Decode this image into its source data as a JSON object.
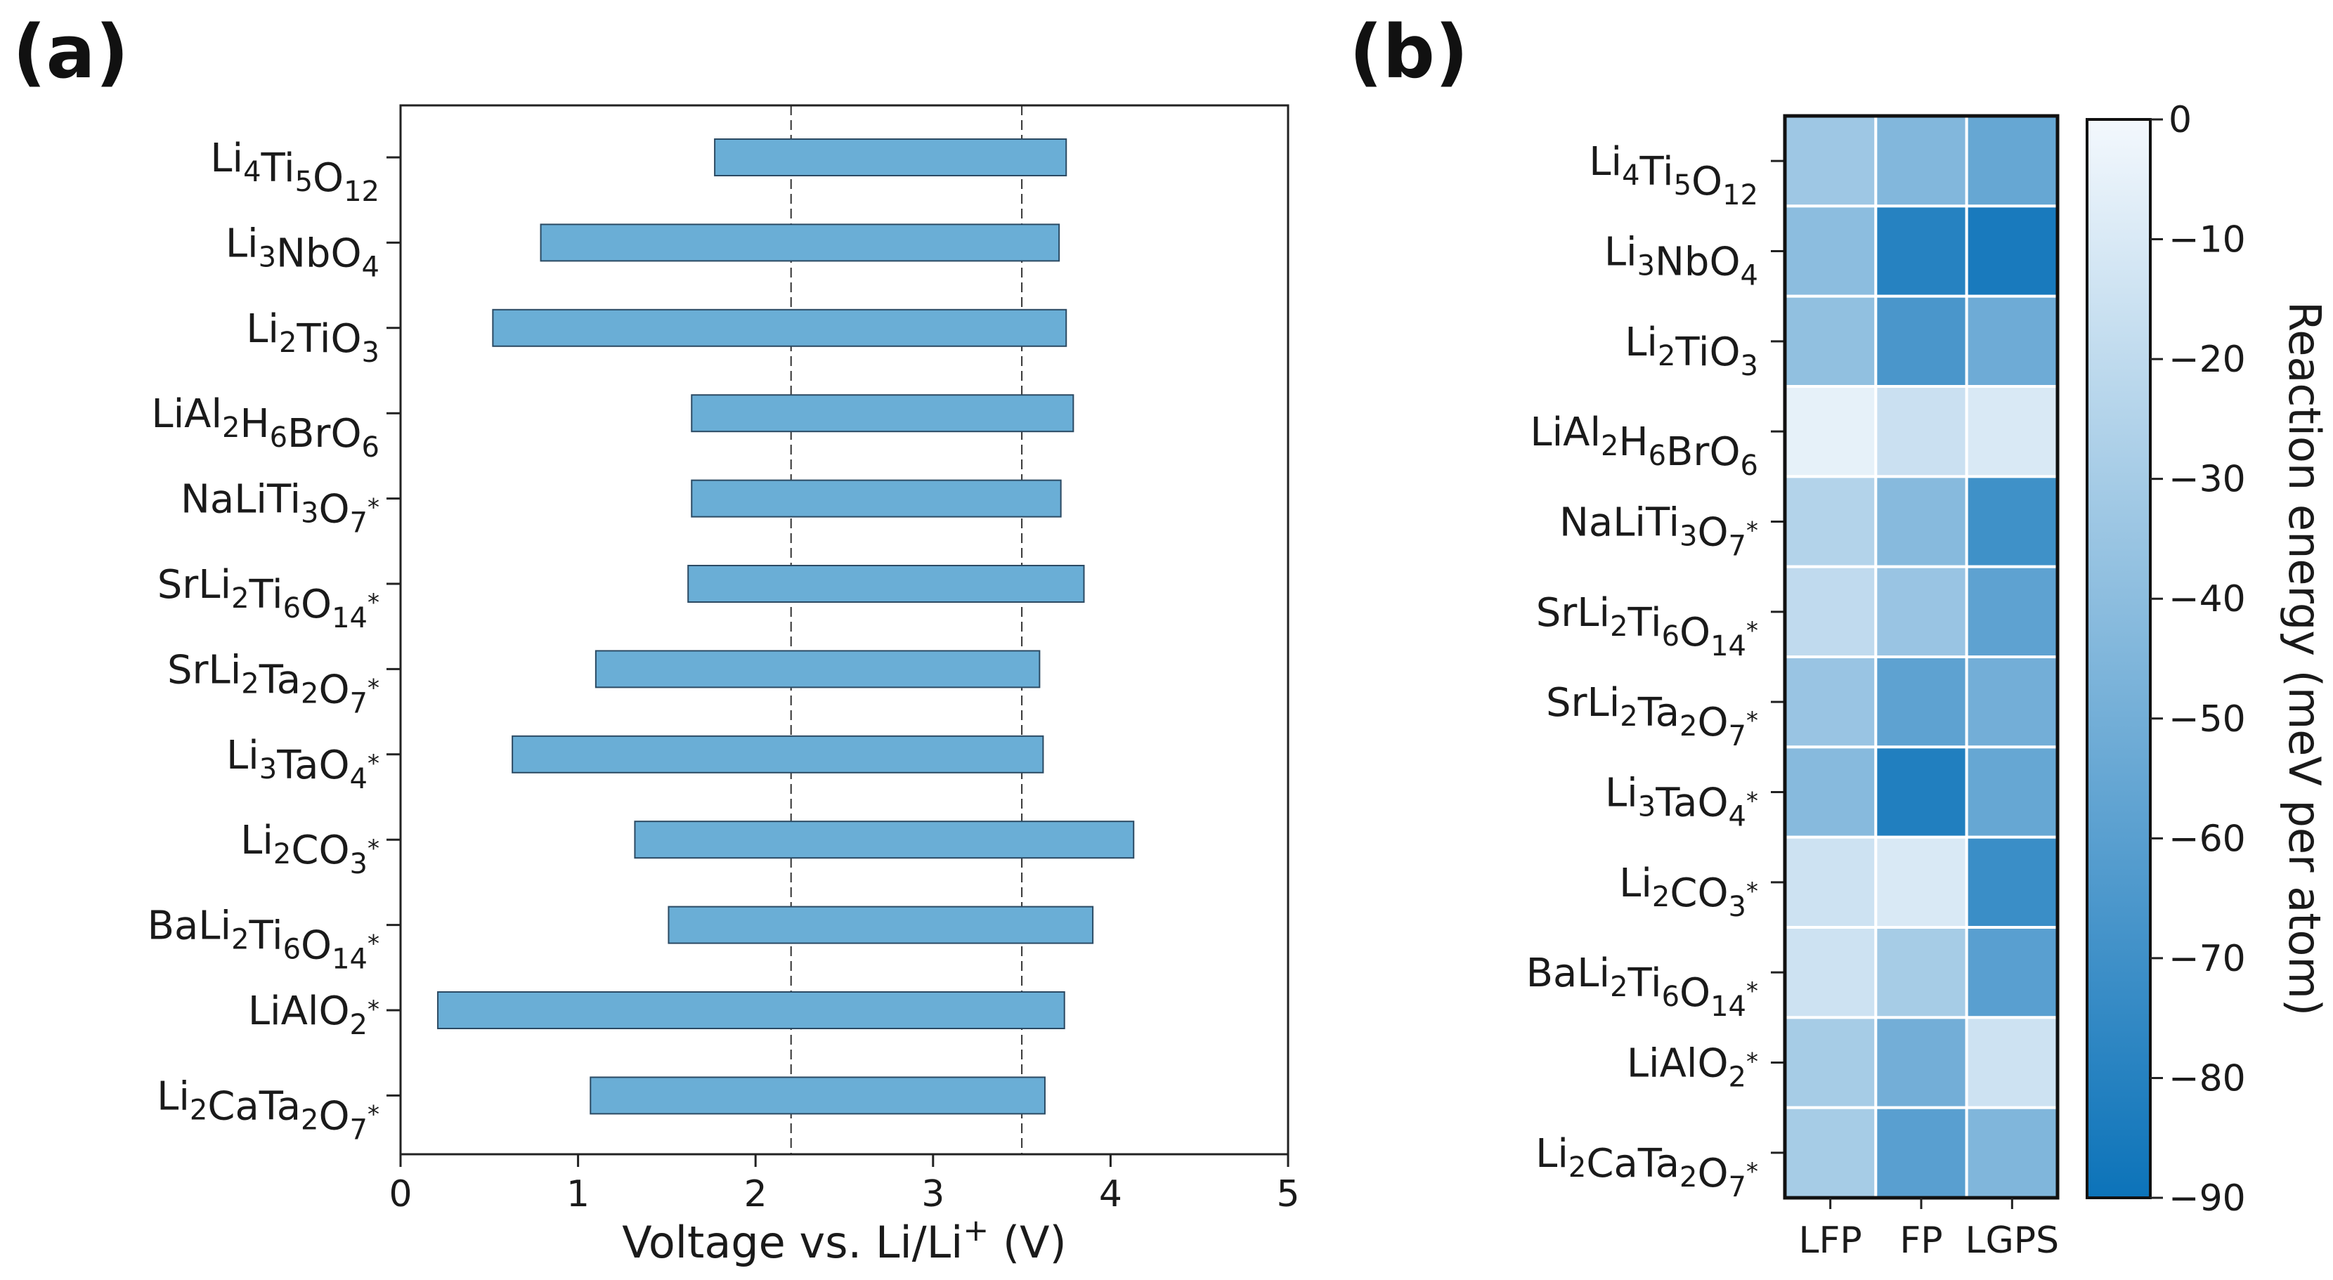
{
  "colors": {
    "bar_fill": "#6aaed6",
    "bar_stroke": "#2b4a63",
    "axis": "#222222"
  },
  "chart_data": [
    {
      "panel": "(a)",
      "type": "bar",
      "orientation": "horizontal-range",
      "categories": [
        {
          "base": "Li",
          "parts": [
            [
              "Li",
              "4"
            ],
            [
              "Ti",
              "5"
            ],
            [
              "O",
              "12"
            ]
          ],
          "star": false
        },
        {
          "parts": [
            [
              "Li",
              "3"
            ],
            [
              "NbO",
              "4"
            ]
          ],
          "star": false
        },
        {
          "parts": [
            [
              "Li",
              "2"
            ],
            [
              "TiO",
              "3"
            ]
          ],
          "star": false
        },
        {
          "parts": [
            [
              "LiAl",
              "2"
            ],
            [
              "H",
              "6"
            ],
            [
              "BrO",
              "6"
            ]
          ],
          "star": false
        },
        {
          "parts": [
            [
              "NaLiTi",
              "3"
            ],
            [
              "O",
              "7"
            ]
          ],
          "star": true
        },
        {
          "parts": [
            [
              "SrLi",
              "2"
            ],
            [
              "Ti",
              "6"
            ],
            [
              "O",
              "14"
            ]
          ],
          "star": true
        },
        {
          "parts": [
            [
              "SrLi",
              "2"
            ],
            [
              "Ta",
              "2"
            ],
            [
              "O",
              "7"
            ]
          ],
          "star": true
        },
        {
          "parts": [
            [
              "Li",
              "3"
            ],
            [
              "TaO",
              "4"
            ]
          ],
          "star": true
        },
        {
          "parts": [
            [
              "Li",
              "2"
            ],
            [
              "CO",
              "3"
            ]
          ],
          "star": true
        },
        {
          "parts": [
            [
              "BaLi",
              "2"
            ],
            [
              "Ti",
              "6"
            ],
            [
              "O",
              "14"
            ]
          ],
          "star": true
        },
        {
          "parts": [
            [
              "LiAlO",
              "2"
            ]
          ],
          "star": true
        },
        {
          "parts": [
            [
              "Li",
              "2"
            ],
            [
              "CaTa",
              "2"
            ],
            [
              "O",
              "7"
            ]
          ],
          "star": true
        }
      ],
      "ranges": [
        [
          1.77,
          3.75
        ],
        [
          0.79,
          3.71
        ],
        [
          0.52,
          3.75
        ],
        [
          1.64,
          3.79
        ],
        [
          1.64,
          3.72
        ],
        [
          1.62,
          3.85
        ],
        [
          1.1,
          3.6
        ],
        [
          0.63,
          3.62
        ],
        [
          1.32,
          4.13
        ],
        [
          1.51,
          3.9
        ],
        [
          0.21,
          3.74
        ],
        [
          1.07,
          3.63
        ]
      ],
      "reference_lines": [
        2.2,
        3.5
      ],
      "xlim": [
        0,
        5
      ],
      "xticks": [
        "0",
        "1",
        "2",
        "3",
        "4",
        "5"
      ],
      "xlabel": "Voltage vs. Li/Li",
      "xlabel_sup": "+",
      "xlabel_unit": "(V)"
    },
    {
      "panel": "(b)",
      "type": "heatmap",
      "columns": [
        "LFP",
        "FP",
        "LGPS"
      ],
      "values": [
        [
          -33,
          -44,
          -55
        ],
        [
          -40,
          -80,
          -85
        ],
        [
          -38,
          -66,
          -52
        ],
        [
          -5,
          -16,
          -10
        ],
        [
          -25,
          -42,
          -70
        ],
        [
          -20,
          -35,
          -58
        ],
        [
          -35,
          -58,
          -50
        ],
        [
          -42,
          -82,
          -55
        ],
        [
          -15,
          -10,
          -72
        ],
        [
          -15,
          -30,
          -60
        ],
        [
          -30,
          -50,
          -15
        ],
        [
          -30,
          -60,
          -45
        ]
      ],
      "vmin": -90,
      "vmax": 0,
      "colorbar_ticks": [
        "0",
        "−10",
        "−20",
        "−30",
        "−40",
        "−50",
        "−60",
        "−70",
        "−80",
        "−90"
      ],
      "colorbar_label": "Reaction energy (meV per atom)"
    }
  ]
}
